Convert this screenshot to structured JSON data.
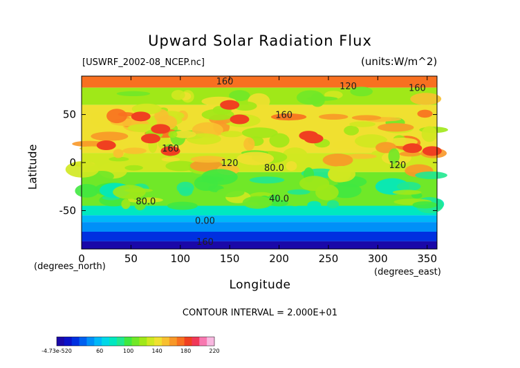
{
  "chart_data": {
    "type": "heatmap",
    "title": "Upward Solar Radiation Flux",
    "file_label": "[USWRF_2002-08_NCEP.nc]",
    "units_label": "(units:W/m^2)",
    "xlabel": "Longitude",
    "ylabel": "Latitude",
    "x_unit_note": "(degrees_north)",
    "x_unit_note_2": "(degrees_east)",
    "contour_interval": "CONTOUR INTERVAL = 2.000E+01",
    "xlim": [
      0,
      360
    ],
    "ylim": [
      -90,
      90
    ],
    "x_ticks": [
      "0",
      "50",
      "100",
      "150",
      "200",
      "250",
      "300",
      "350"
    ],
    "y_ticks": [
      "50",
      "0",
      "-50"
    ],
    "contour_labels": [
      "160",
      "120",
      "160",
      "160",
      "160",
      "120",
      "120",
      "80.0",
      "80.0",
      "40.0",
      "0.00",
      "160"
    ],
    "colorbar": {
      "labels": [
        "-4.73e-520",
        "60",
        "100",
        "140",
        "180",
        "220"
      ],
      "colors": [
        "#1a08a8",
        "#0a12c8",
        "#0030e0",
        "#0060f0",
        "#0090f8",
        "#00b8f8",
        "#00d8e8",
        "#00e8c0",
        "#20e890",
        "#40e840",
        "#70e828",
        "#a0e818",
        "#d0e820",
        "#f0e030",
        "#f8c030",
        "#f89828",
        "#f87020",
        "#f04020",
        "#f03858",
        "#f878b0",
        "#f8b8e0"
      ]
    },
    "bands": [
      {
        "lat_range": [
          78,
          90
        ],
        "value": 180
      },
      {
        "lat_range": [
          60,
          78
        ],
        "value": 120
      },
      {
        "lat_range": [
          10,
          60
        ],
        "value": 140
      },
      {
        "lat_range": [
          -10,
          10
        ],
        "value": 130
      },
      {
        "lat_range": [
          -45,
          -10
        ],
        "value": 110
      },
      {
        "lat_range": [
          -55,
          -45
        ],
        "value": 80
      },
      {
        "lat_range": [
          -62,
          -55
        ],
        "value": 60
      },
      {
        "lat_range": [
          -72,
          -62
        ],
        "value": 40
      },
      {
        "lat_range": [
          -82,
          -72
        ],
        "value": 20
      },
      {
        "lat_range": [
          -90,
          -82
        ],
        "value": 0
      }
    ]
  }
}
